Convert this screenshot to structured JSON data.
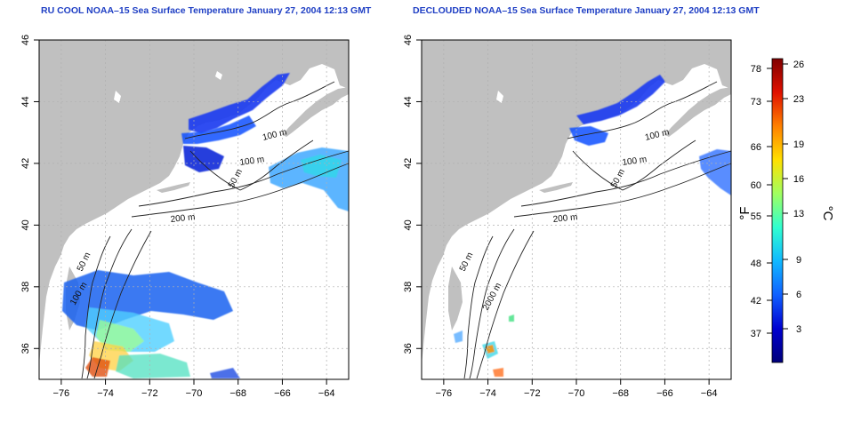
{
  "panels": [
    {
      "title": "RU COOL NOAA–15 Sea Surface Temperature January 27, 2004 12:13 GMT",
      "contour_labels": [
        "100 m",
        "100 m",
        "50 m",
        "200 m",
        "50 m",
        "100 m"
      ]
    },
    {
      "title": "DECLOUDED NOAA–15 Sea Surface Temperature January 27, 2004 12:13 GMT",
      "contour_labels": [
        "100 m",
        "100 m",
        "50 m",
        "200 m",
        "50 m",
        "2000 m"
      ]
    }
  ],
  "map_axes": {
    "lon_ticks": [
      "−76",
      "−74",
      "−72",
      "−70",
      "−68",
      "−66",
      "−64"
    ],
    "lat_ticks": [
      "36",
      "38",
      "40",
      "42",
      "44",
      "46"
    ]
  },
  "colorbar": {
    "left_unit": "°F",
    "right_unit": "°C",
    "f_ticks": [
      "78",
      "73",
      "66",
      "60",
      "55",
      "48",
      "42",
      "37"
    ],
    "c_ticks": [
      "26",
      "23",
      "19",
      "16",
      "13",
      "9",
      "6",
      "3"
    ],
    "colors": [
      "#00007a",
      "#0000d0",
      "#1060ff",
      "#10b8ff",
      "#30ffd0",
      "#a0ff60",
      "#ffe000",
      "#ff8000",
      "#e01000",
      "#800000"
    ]
  },
  "colors": {
    "land": "#c0c0c0",
    "title": "#1f3fc4"
  }
}
